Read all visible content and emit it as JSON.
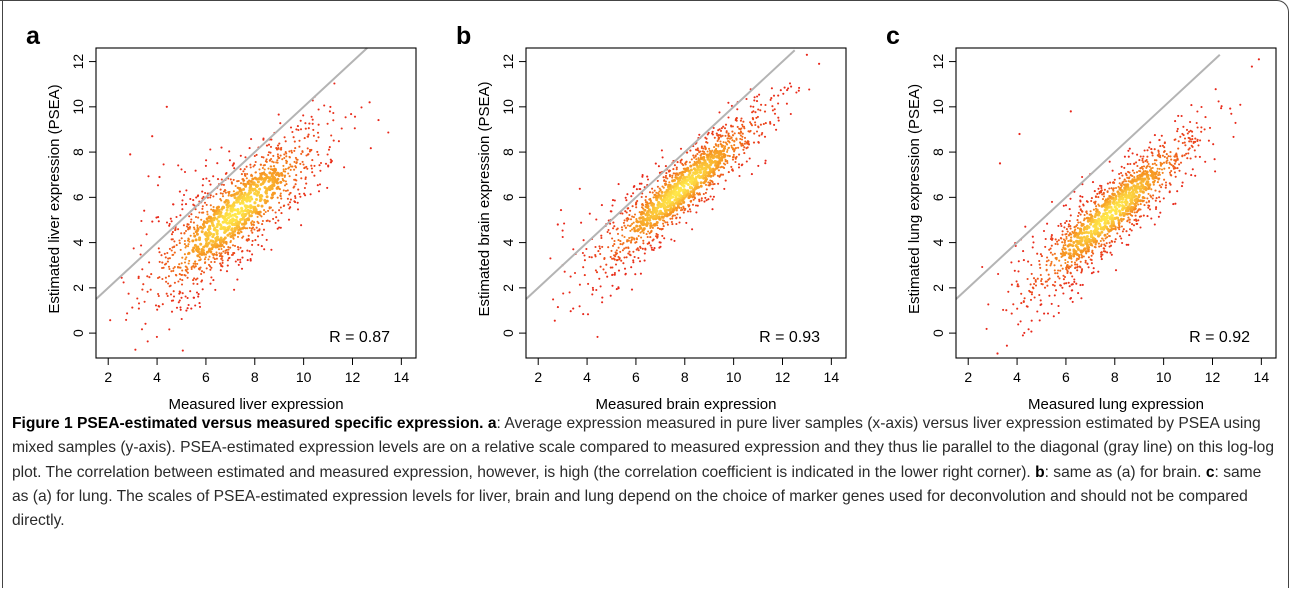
{
  "chart_data": [
    {
      "type": "scatter",
      "panel_label": "a",
      "xlabel": "Measured liver expression",
      "ylabel": "Estimated liver expression (PSEA)",
      "xlim": [
        1.5,
        14.6
      ],
      "ylim": [
        -1.1,
        12.6
      ],
      "xticks": [
        "2",
        "4",
        "6",
        "8",
        "10",
        "12",
        "14"
      ],
      "yticks": [
        "0",
        "2",
        "4",
        "6",
        "8",
        "10",
        "12"
      ],
      "annotation": "R = 0.87",
      "diagonal": {
        "from": [
          1.5,
          1.5
        ],
        "to": [
          12.6,
          12.6
        ],
        "color": "#b4b4b4"
      },
      "point_cloud": {
        "center": [
          7.2,
          5.3
        ],
        "slope": 0.86,
        "intercept": -0.9,
        "spread": 1.05,
        "n": 1300,
        "outliers": [
          [
            4.4,
            10.0
          ],
          [
            2.9,
            7.9
          ],
          [
            3.8,
            8.7
          ],
          [
            12.7,
            10.2
          ],
          [
            4.1,
            6.9
          ]
        ]
      }
    },
    {
      "type": "scatter",
      "panel_label": "b",
      "xlabel": "Measured brain expression",
      "ylabel": "Estimated brain expression (PSEA)",
      "xlim": [
        1.5,
        14.6
      ],
      "ylim": [
        -1.1,
        12.6
      ],
      "xticks": [
        "2",
        "4",
        "6",
        "8",
        "10",
        "12",
        "14"
      ],
      "yticks": [
        "0",
        "2",
        "4",
        "6",
        "8",
        "10",
        "12"
      ],
      "annotation": "R = 0.93",
      "diagonal": {
        "from": [
          1.5,
          1.5
        ],
        "to": [
          12.5,
          12.5
        ],
        "color": "#b4b4b4"
      },
      "point_cloud": {
        "center": [
          7.8,
          6.3
        ],
        "slope": 0.9,
        "intercept": -0.7,
        "spread": 0.75,
        "n": 1300,
        "outliers": [
          [
            13.0,
            12.3
          ],
          [
            13.5,
            11.9
          ],
          [
            2.8,
            4.8
          ],
          [
            3.0,
            3.0
          ]
        ]
      }
    },
    {
      "type": "scatter",
      "panel_label": "c",
      "xlabel": "Measured lung expression",
      "ylabel": "Estimated lung expression (PSEA)",
      "xlim": [
        1.5,
        14.6
      ],
      "ylim": [
        -1.1,
        12.6
      ],
      "xticks": [
        "2",
        "4",
        "6",
        "8",
        "10",
        "12",
        "14"
      ],
      "yticks": [
        "0",
        "2",
        "4",
        "6",
        "8",
        "10",
        "12"
      ],
      "annotation": "R = 0.92",
      "diagonal": {
        "from": [
          1.5,
          1.5
        ],
        "to": [
          12.3,
          12.3
        ],
        "color": "#b4b4b4"
      },
      "point_cloud": {
        "center": [
          7.8,
          5.3
        ],
        "slope": 0.93,
        "intercept": -2.0,
        "spread": 0.8,
        "n": 1300,
        "outliers": [
          [
            6.2,
            9.8
          ],
          [
            4.1,
            8.8
          ],
          [
            13.9,
            12.1
          ],
          [
            3.3,
            7.5
          ],
          [
            3.2,
            -0.9
          ]
        ]
      }
    }
  ],
  "caption": {
    "figure_label": "Figure 1",
    "title": "PSEA-estimated versus measured specific expression.",
    "part_a_label": "a",
    "part_a_text": ": Average expression measured in pure liver samples (x-axis) versus liver expression estimated by PSEA using mixed samples (y-axis). PSEA-estimated expression levels are on a relative scale compared to measured expression and they thus lie parallel to the diagonal (gray line) on this log-log plot. The correlation between estimated and measured expression, however, is high (the correlation coefficient is indicated in the lower right corner).",
    "part_b_label": "b",
    "part_b_text": ": same as (a) for brain.",
    "part_c_label": "c",
    "part_c_text": ": same as (a) for lung. The scales of PSEA-estimated expression levels for liver, brain and lung depend on the choice of marker genes used for deconvolution and should not be compared directly."
  },
  "colors": {
    "point_low": "#e8261a",
    "point_mid": "#f58a1c",
    "point_high": "#ffe84a",
    "diagonal": "#b4b4b4",
    "axis": "#000000"
  }
}
